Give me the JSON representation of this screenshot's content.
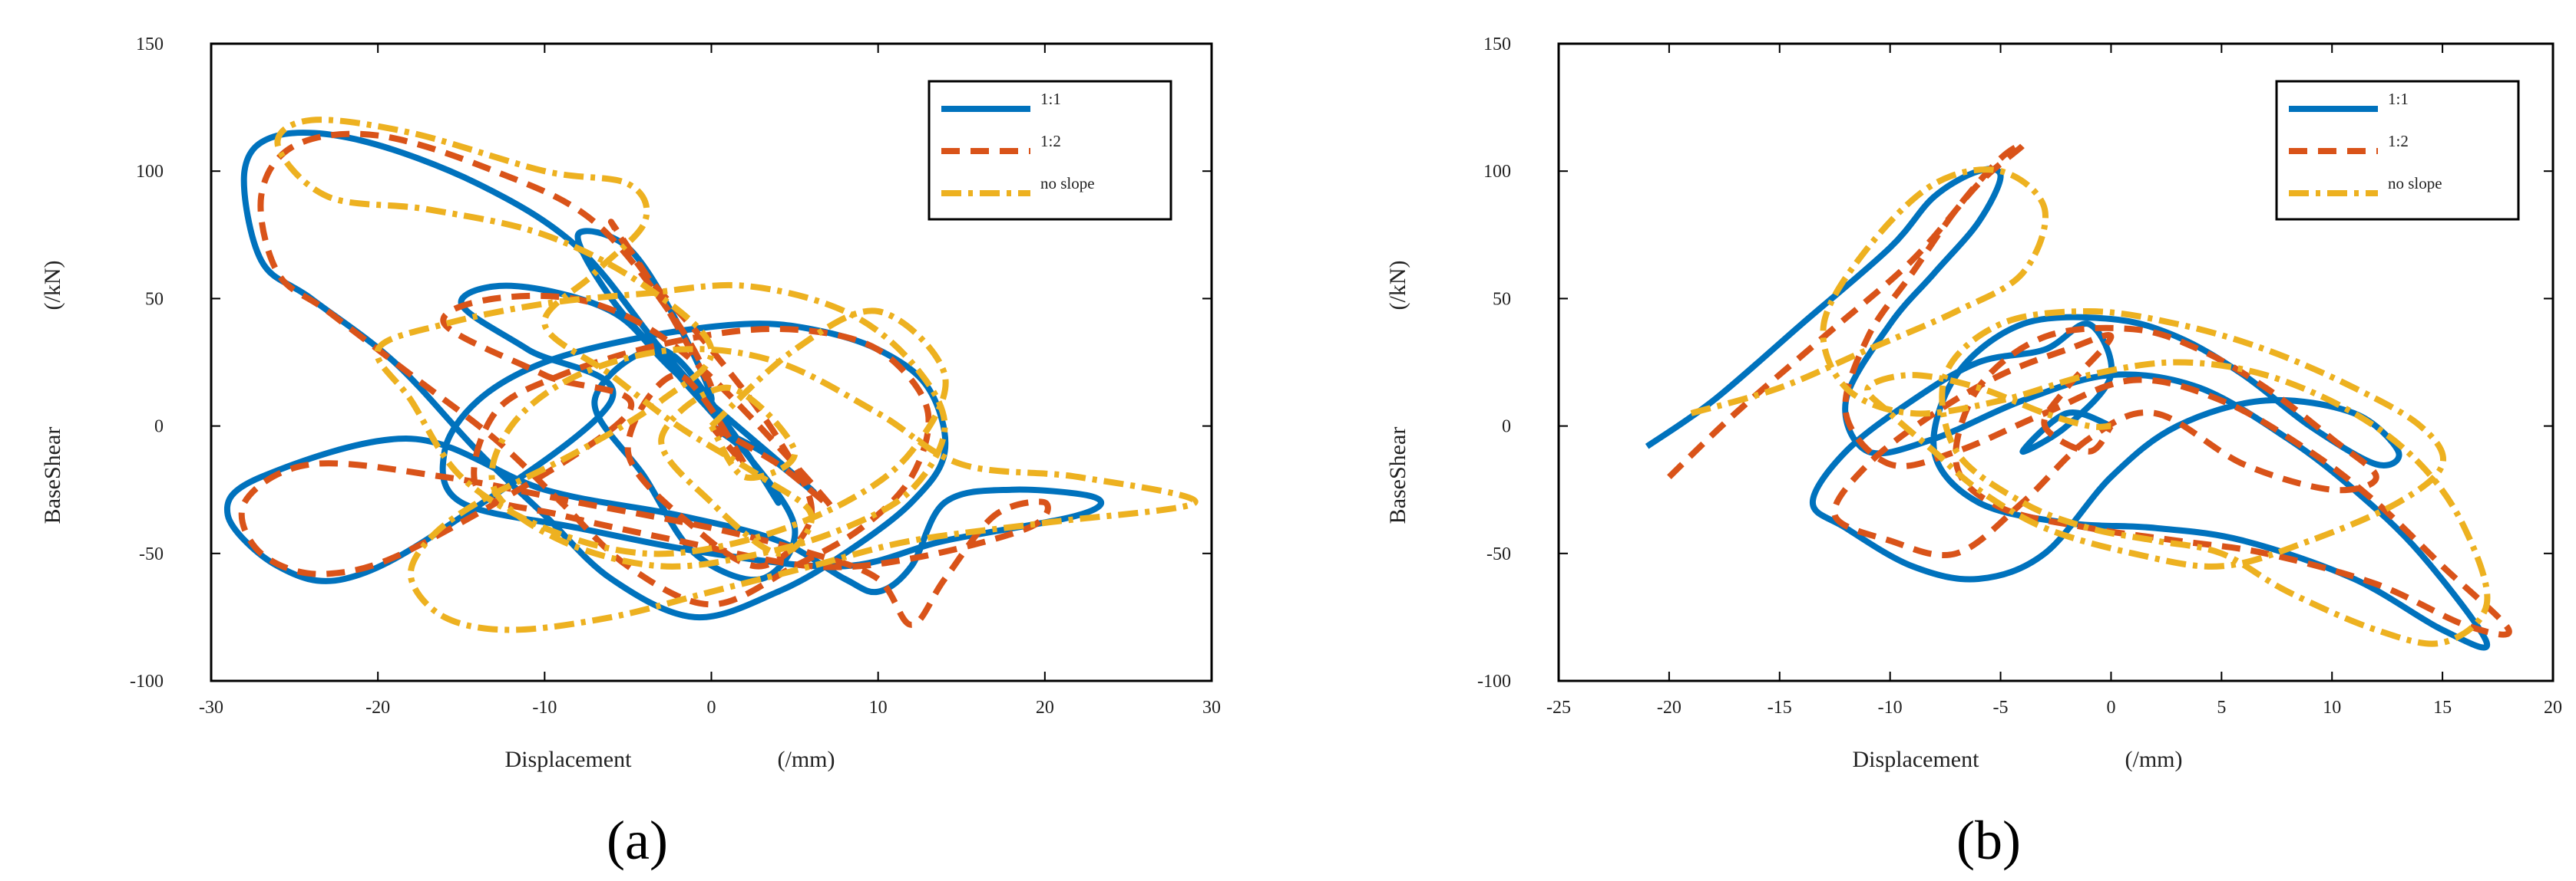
{
  "chart_data": [
    {
      "type": "line",
      "panel_label": "(a)",
      "xlabel": "Displacement",
      "xunit": "(/mm)",
      "ylabel": "BaseShear",
      "yunit": "(/kN)",
      "xlim": [
        -30,
        30
      ],
      "ylim": [
        -100,
        150
      ],
      "xticks": [
        "-30",
        "-20",
        "-10",
        "0",
        "10",
        "20",
        "30"
      ],
      "yticks": [
        "-100",
        "-50",
        "0",
        "50",
        "100",
        "150"
      ],
      "legend_position": "top-right",
      "series": [
        {
          "name": "1:1",
          "color": "#0072BD",
          "style": "solid",
          "x": [
            0,
            3,
            6,
            -2,
            -6,
            -12,
            -15,
            -11,
            -6,
            -16,
            -22,
            -26,
            -29,
            -27,
            -18,
            -10,
            -2,
            4,
            8,
            10,
            12,
            14,
            18,
            23,
            22,
            14,
            8,
            0,
            -8,
            -15,
            -16,
            -14,
            -10,
            -4,
            2,
            6,
            10,
            13,
            14,
            12,
            8,
            4,
            -1,
            -6,
            -10,
            -14,
            -19,
            -24,
            -27,
            -28,
            -26,
            -21,
            -14,
            -8,
            -3,
            0,
            -2,
            -5,
            -8,
            -6,
            -2,
            2,
            5,
            3,
            -1,
            -4,
            -7,
            -3,
            1,
            4,
            2,
            0
          ],
          "y": [
            0,
            -10,
            -25,
            20,
            45,
            55,
            48,
            30,
            10,
            -40,
            -60,
            -55,
            -35,
            -20,
            -5,
            -25,
            -35,
            -45,
            -60,
            -65,
            -55,
            -30,
            -25,
            -28,
            -35,
            -45,
            -55,
            -50,
            -40,
            -30,
            -10,
            10,
            25,
            35,
            40,
            38,
            30,
            15,
            -10,
            -30,
            -50,
            -65,
            -75,
            -60,
            -35,
            -10,
            25,
            50,
            65,
            100,
            114,
            112,
            95,
            70,
            30,
            10,
            40,
            70,
            75,
            50,
            20,
            -10,
            -40,
            -60,
            -50,
            -20,
            10,
            30,
            0,
            -30,
            -10,
            0
          ]
        },
        {
          "name": "1:2",
          "color": "#D95319",
          "style": "dashed",
          "x": [
            0,
            4,
            7,
            -1,
            -7,
            -13,
            -16,
            -10,
            -5,
            -17,
            -23,
            -27,
            -28,
            -24,
            -16,
            -8,
            0,
            6,
            10,
            12,
            14,
            17,
            20,
            19,
            12,
            6,
            -2,
            -9,
            -14,
            -13,
            -9,
            -3,
            3,
            8,
            11,
            13,
            12,
            9,
            5,
            0,
            -5,
            -9,
            -13,
            -18,
            -23,
            -26,
            -27,
            -25,
            -20,
            -13,
            -7,
            -2,
            0,
            -3,
            -6,
            -4,
            0,
            4,
            6,
            3,
            -1,
            -5,
            -2,
            2,
            0
          ],
          "y": [
            0,
            -15,
            -30,
            25,
            48,
            50,
            40,
            20,
            5,
            -45,
            -58,
            -50,
            -30,
            -15,
            -20,
            -30,
            -40,
            -50,
            -60,
            -78,
            -60,
            -35,
            -30,
            -40,
            -52,
            -55,
            -45,
            -35,
            -25,
            5,
            20,
            32,
            38,
            35,
            25,
            5,
            -20,
            -40,
            -55,
            -70,
            -55,
            -30,
            -5,
            20,
            45,
            60,
            90,
            110,
            114,
            100,
            80,
            40,
            15,
            50,
            80,
            60,
            30,
            -5,
            -35,
            -55,
            -40,
            -10,
            20,
            -15,
            0
          ]
        },
        {
          "name": "no slope",
          "color": "#EDB120",
          "style": "dashdot",
          "x": [
            0,
            5,
            10,
            14,
            12,
            8,
            2,
            -4,
            -10,
            -15,
            -18,
            -20,
            -16,
            -10,
            -4,
            2,
            8,
            12,
            14,
            12,
            8,
            3,
            -3,
            -9,
            -13,
            -12,
            -8,
            -2,
            4,
            10,
            15,
            22,
            29,
            20,
            12,
            6,
            0,
            -6,
            -12,
            -16,
            -18,
            -17,
            -14,
            -8,
            -3,
            0,
            -4,
            -10,
            -17,
            -23,
            -26,
            -24,
            -18,
            -10,
            -5,
            -4,
            -7,
            -10,
            -6,
            -2,
            3,
            6,
            4,
            0,
            -3,
            1,
            5,
            2,
            0
          ],
          "y": [
            0,
            30,
            45,
            20,
            -10,
            -30,
            -45,
            -50,
            -40,
            -20,
            10,
            30,
            40,
            48,
            52,
            55,
            45,
            25,
            0,
            -25,
            -40,
            -50,
            -55,
            -45,
            -25,
            0,
            20,
            30,
            25,
            5,
            -15,
            -20,
            -30,
            -38,
            -45,
            -55,
            -65,
            -75,
            -80,
            -75,
            -60,
            -45,
            -30,
            -10,
            10,
            30,
            55,
            75,
            85,
            90,
            110,
            120,
            115,
            100,
            95,
            80,
            60,
            40,
            20,
            0,
            -20,
            -35,
            -50,
            -30,
            -5,
            15,
            -10,
            -20,
            0
          ]
        }
      ]
    },
    {
      "type": "line",
      "panel_label": "(b)",
      "xlabel": "Displacement",
      "xunit": "(/mm)",
      "ylabel": "BaseShear",
      "yunit": "(/kN)",
      "xlim": [
        -25,
        20
      ],
      "ylim": [
        -100,
        150
      ],
      "xticks": [
        "-25",
        "-20",
        "-15",
        "-10",
        "-5",
        "0",
        "5",
        "10",
        "15",
        "20"
      ],
      "yticks": [
        "-100",
        "-50",
        "0",
        "50",
        "100",
        "150"
      ],
      "legend_position": "top-right",
      "series": [
        {
          "name": "1:1",
          "color": "#0072BD",
          "style": "solid",
          "x": [
            -21,
            -18,
            -14,
            -10,
            -8,
            -6,
            -5,
            -6,
            -8,
            -10,
            -12,
            -11,
            -8,
            -4,
            0,
            4,
            8,
            11,
            14,
            17,
            15,
            11,
            6,
            2,
            -2,
            -6,
            -8,
            -7,
            -4,
            0,
            3,
            6,
            9,
            12,
            13,
            11,
            7,
            3,
            0,
            -3,
            -6,
            -9,
            -12,
            -13.5,
            -12,
            -9,
            -6,
            -3,
            -1,
            0,
            -2,
            -4,
            -2,
            0
          ],
          "y": [
            -8,
            10,
            40,
            70,
            90,
            100,
            98,
            80,
            60,
            40,
            10,
            -10,
            -5,
            10,
            20,
            15,
            -5,
            -25,
            -50,
            -85,
            -80,
            -60,
            -45,
            -40,
            -38,
            -30,
            -10,
            20,
            40,
            42,
            35,
            20,
            0,
            -15,
            -10,
            5,
            10,
            0,
            -20,
            -50,
            -60,
            -55,
            -40,
            -30,
            -10,
            10,
            25,
            30,
            40,
            20,
            0,
            -10,
            5,
            0
          ]
        },
        {
          "name": "1:2",
          "color": "#D95319",
          "style": "dashed",
          "x": [
            -20,
            -17,
            -13,
            -9,
            -6,
            -4,
            -5,
            -7,
            -9,
            -11,
            -12,
            -10,
            -7,
            -3,
            1,
            5,
            9,
            12,
            15,
            18,
            16,
            12,
            7,
            3,
            -1,
            -5,
            -7,
            -6,
            -3,
            1,
            4,
            7,
            10,
            12,
            10,
            6,
            2,
            -1,
            -4,
            -7,
            -10,
            -12.5,
            -11,
            -8,
            -5,
            -2,
            0,
            -2,
            -3,
            -1,
            0
          ],
          "y": [
            -20,
            5,
            35,
            65,
            95,
            110,
            105,
            85,
            60,
            35,
            5,
            -15,
            -10,
            5,
            18,
            10,
            -10,
            -30,
            -55,
            -80,
            -78,
            -62,
            -50,
            -45,
            -40,
            -32,
            -15,
            15,
            35,
            38,
            30,
            15,
            -5,
            -20,
            -25,
            -15,
            5,
            -5,
            -30,
            -50,
            -45,
            -35,
            -15,
            5,
            20,
            30,
            35,
            15,
            0,
            -10,
            0
          ]
        },
        {
          "name": "no slope",
          "color": "#EDB120",
          "style": "dashdot",
          "x": [
            -19,
            -15,
            -11,
            -7,
            -4,
            -3,
            -5,
            -8,
            -11,
            -13,
            -12,
            -9,
            -5,
            -1,
            3,
            7,
            11,
            14,
            16,
            17,
            15,
            12,
            8,
            5,
            2,
            -1,
            -4,
            -7,
            -7.5,
            -5,
            -1,
            3,
            7,
            11,
            14,
            15,
            13,
            9,
            5,
            1,
            -3,
            -6,
            -8,
            -10,
            -11,
            -9,
            -6,
            -3,
            -1,
            0
          ],
          "y": [
            5,
            15,
            30,
            45,
            60,
            85,
            100,
            95,
            70,
            40,
            15,
            5,
            10,
            20,
            25,
            20,
            5,
            -15,
            -40,
            -70,
            -85,
            -80,
            -65,
            -50,
            -45,
            -40,
            -30,
            -10,
            20,
            40,
            45,
            40,
            30,
            15,
            0,
            -15,
            -30,
            -45,
            -55,
            -50,
            -40,
            -25,
            -10,
            5,
            15,
            20,
            15,
            5,
            0,
            0
          ]
        }
      ]
    }
  ]
}
